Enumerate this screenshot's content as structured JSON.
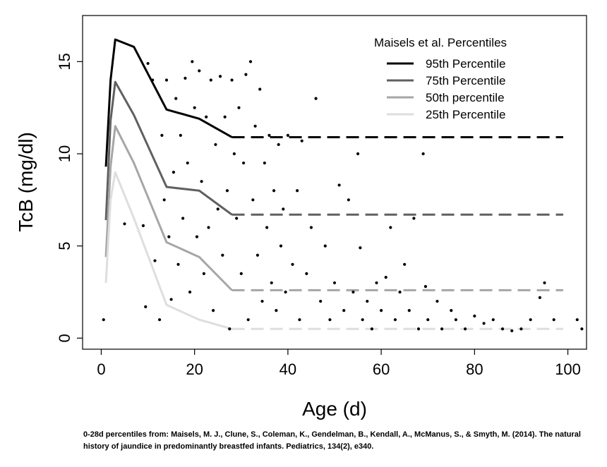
{
  "chart_data": {
    "type": "scatter",
    "title": "",
    "xlabel": "Age (d)",
    "ylabel": "TcB (mg/dl)",
    "xlim": [
      -4,
      104
    ],
    "ylim": [
      -0.6,
      17.5
    ],
    "xticks": [
      0,
      20,
      40,
      60,
      80,
      100
    ],
    "yticks": [
      0,
      5,
      10,
      15
    ],
    "grid": false,
    "legend": {
      "title": "Maisels et al. Percentiles",
      "placement": "top-right",
      "entries": [
        "95th Percentile",
        "75th Percentile",
        "50th percentile",
        "25th Percentile"
      ]
    },
    "series": [
      {
        "name": "95th Percentile",
        "color": "#000000",
        "x": [
          1,
          2,
          3,
          7,
          14,
          21,
          28
        ],
        "y": [
          9.3,
          14.0,
          16.2,
          15.8,
          12.4,
          11.9,
          10.9
        ],
        "dashed_from_x": 28,
        "dashed_to_x": 99,
        "dashed_y": 10.9
      },
      {
        "name": "75th Percentile",
        "color": "#606060",
        "x": [
          1,
          2,
          3,
          7,
          14,
          21,
          28
        ],
        "y": [
          6.4,
          11.8,
          13.9,
          12.1,
          8.2,
          8.0,
          6.7
        ],
        "dashed_from_x": 28,
        "dashed_to_x": 99,
        "dashed_y": 6.7
      },
      {
        "name": "50th percentile",
        "color": "#a6a6a6",
        "x": [
          1,
          2,
          3,
          7,
          14,
          21,
          28
        ],
        "y": [
          4.4,
          9.3,
          11.5,
          9.5,
          5.2,
          4.4,
          2.6
        ],
        "dashed_from_x": 28,
        "dashed_to_x": 99,
        "dashed_y": 2.6
      },
      {
        "name": "25th Percentile",
        "color": "#dedede",
        "x": [
          1,
          2,
          3,
          7,
          14,
          21,
          28
        ],
        "y": [
          3.0,
          7.5,
          9.0,
          6.5,
          1.8,
          1.0,
          0.5
        ],
        "dashed_from_x": 28,
        "dashed_to_x": 99,
        "dashed_y": 0.5
      }
    ],
    "scatter_points": [
      [
        0.5,
        1.0
      ],
      [
        5,
        6.2
      ],
      [
        9,
        6.1
      ],
      [
        9.5,
        1.7
      ],
      [
        10,
        14.9
      ],
      [
        11,
        14.0
      ],
      [
        11.5,
        4.2
      ],
      [
        12.5,
        1.0
      ],
      [
        13,
        11.0
      ],
      [
        13.5,
        7.5
      ],
      [
        14,
        14.0
      ],
      [
        14.5,
        5.5
      ],
      [
        15,
        2.1
      ],
      [
        15.5,
        9.0
      ],
      [
        16,
        13.0
      ],
      [
        16.5,
        4.0
      ],
      [
        17,
        11.0
      ],
      [
        17.5,
        6.5
      ],
      [
        18,
        14.1
      ],
      [
        18.5,
        9.5
      ],
      [
        19,
        2.5
      ],
      [
        19.5,
        15.0
      ],
      [
        20,
        12.5
      ],
      [
        20.5,
        5.5
      ],
      [
        21,
        14.5
      ],
      [
        21.5,
        8.5
      ],
      [
        22,
        3.5
      ],
      [
        22.5,
        12.0
      ],
      [
        23,
        6.0
      ],
      [
        23.5,
        14.0
      ],
      [
        24,
        1.5
      ],
      [
        24.5,
        10.5
      ],
      [
        25,
        7.0
      ],
      [
        25.5,
        14.2
      ],
      [
        26,
        4.5
      ],
      [
        26.5,
        12.0
      ],
      [
        27,
        8.0
      ],
      [
        27.5,
        0.5
      ],
      [
        28,
        14.0
      ],
      [
        28.5,
        10.0
      ],
      [
        29,
        6.5
      ],
      [
        29.5,
        12.5
      ],
      [
        30,
        3.5
      ],
      [
        30.5,
        9.5
      ],
      [
        31,
        14.3
      ],
      [
        31.5,
        1.0
      ],
      [
        32,
        15.0
      ],
      [
        32.5,
        7.5
      ],
      [
        33,
        11.5
      ],
      [
        33.5,
        4.5
      ],
      [
        34,
        13.5
      ],
      [
        34.5,
        2.0
      ],
      [
        35,
        9.5
      ],
      [
        35.5,
        6.0
      ],
      [
        36,
        11.0
      ],
      [
        36.5,
        3.0
      ],
      [
        37,
        8.0
      ],
      [
        37.5,
        1.5
      ],
      [
        38,
        10.5
      ],
      [
        38.5,
        5.0
      ],
      [
        39,
        7.0
      ],
      [
        39.5,
        2.5
      ],
      [
        40,
        11.0
      ],
      [
        41,
        4.0
      ],
      [
        42,
        8.0
      ],
      [
        42.5,
        1.0
      ],
      [
        43,
        10.7
      ],
      [
        44,
        3.5
      ],
      [
        45,
        6.0
      ],
      [
        46,
        13.0
      ],
      [
        47,
        2.0
      ],
      [
        48,
        5.0
      ],
      [
        49,
        1.0
      ],
      [
        50,
        3.0
      ],
      [
        51,
        8.3
      ],
      [
        52,
        1.5
      ],
      [
        53,
        7.5
      ],
      [
        54,
        2.5
      ],
      [
        55,
        10.0
      ],
      [
        55.5,
        4.9
      ],
      [
        56,
        1.0
      ],
      [
        57,
        2.0
      ],
      [
        58,
        0.5
      ],
      [
        59,
        3.0
      ],
      [
        60,
        1.5
      ],
      [
        61,
        3.3
      ],
      [
        62,
        6.0
      ],
      [
        63,
        1.0
      ],
      [
        64,
        2.5
      ],
      [
        65,
        4.0
      ],
      [
        66,
        1.5
      ],
      [
        67,
        6.5
      ],
      [
        68,
        0.5
      ],
      [
        69,
        10.0
      ],
      [
        69.5,
        2.8
      ],
      [
        70,
        1.0
      ],
      [
        72,
        2.0
      ],
      [
        73,
        0.5
      ],
      [
        75,
        1.5
      ],
      [
        76,
        1.0
      ],
      [
        78,
        0.5
      ],
      [
        80,
        1.2
      ],
      [
        82,
        0.8
      ],
      [
        84,
        1.0
      ],
      [
        86,
        0.5
      ],
      [
        88,
        0.4
      ],
      [
        90,
        0.5
      ],
      [
        92,
        1.0
      ],
      [
        94,
        2.2
      ],
      [
        95,
        3.0
      ],
      [
        97,
        1.0
      ],
      [
        102,
        1.0
      ],
      [
        103,
        0.5
      ]
    ],
    "point_color": "#000000",
    "caption": "0-28d percentiles from: Maisels, M. J., Clune, S., Coleman, K., Gendelman, B., Kendall, A., McManus, S., & Smyth, M. (2014). The natural history of jaundice in predominantly breastfed infants. Pediatrics, 134(2), e340."
  }
}
